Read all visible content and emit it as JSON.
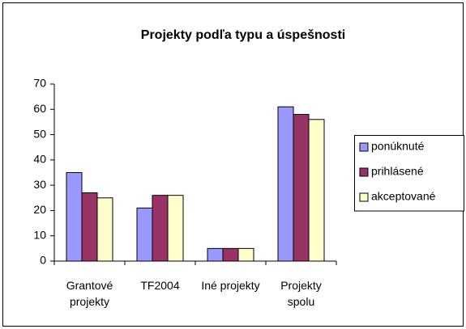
{
  "chart_data": {
    "type": "bar",
    "title": "Projekty podľa typu a úspešnosti",
    "categories": [
      "Grantové projekty",
      "TF2004",
      "Iné projekty",
      "Projekty spolu"
    ],
    "series": [
      {
        "name": "ponúknuté",
        "color": "#9999ff",
        "values": [
          35,
          21,
          5,
          61
        ]
      },
      {
        "name": "prihlásené",
        "color": "#993366",
        "values": [
          27,
          26,
          5,
          58
        ]
      },
      {
        "name": "akceptované",
        "color": "#ffffcc",
        "values": [
          25,
          26,
          5,
          56
        ]
      }
    ],
    "ylim": [
      0,
      70
    ],
    "yticks": [
      0,
      10,
      20,
      30,
      40,
      50,
      60,
      70
    ],
    "grid": false,
    "legend": "right"
  }
}
